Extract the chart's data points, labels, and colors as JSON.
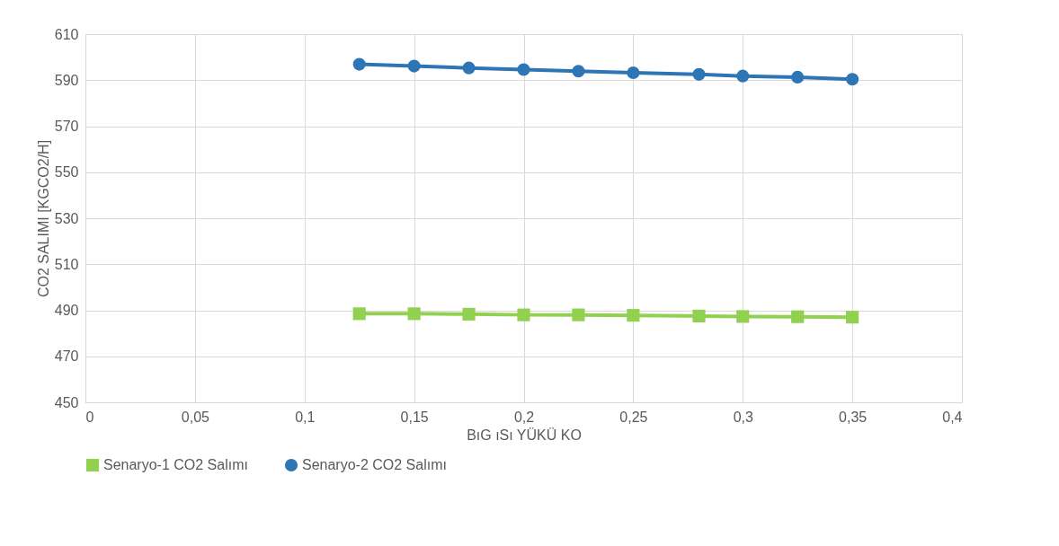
{
  "chart_data": {
    "type": "line",
    "xlabel": "BıG ıSı YÜKÜ KO",
    "ylabel": "CO2 SALIMI [KGCO2/H]",
    "x": [
      0.125,
      0.15,
      0.175,
      0.2,
      0.225,
      0.25,
      0.28,
      0.3,
      0.325,
      0.35
    ],
    "series": [
      {
        "name": "Senaryo-1 CO2 Salımı",
        "color": "#92d050",
        "marker": "square",
        "values": [
          488.5,
          488.5,
          488.3,
          488.0,
          488.0,
          487.8,
          487.5,
          487.3,
          487.2,
          487.0
        ]
      },
      {
        "name": "Senaryo-2 CO2 Salımı",
        "color": "#2e75b6",
        "marker": "circle",
        "values": [
          596.9,
          596.1,
          595.3,
          594.6,
          593.9,
          593.2,
          592.5,
          591.8,
          591.3,
          590.4
        ]
      }
    ],
    "xlim": [
      0,
      0.4
    ],
    "xticks": [
      0,
      {
        "value": 0.05,
        "label": "0,05"
      },
      {
        "value": 0.1,
        "label": "0,1"
      },
      {
        "value": 0.15,
        "label": "0,15"
      },
      {
        "value": 0.2,
        "label": "0,2"
      },
      {
        "value": 0.25,
        "label": "0,25"
      },
      {
        "value": 0.3,
        "label": "0,3"
      },
      {
        "value": 0.35,
        "label": "0,35"
      },
      {
        "value": 0.4,
        "label": "0,4"
      }
    ],
    "ylim": [
      450,
      610
    ],
    "yticks": [
      450,
      470,
      490,
      510,
      530,
      550,
      570,
      590,
      610
    ],
    "grid": true,
    "legend": "bottom",
    "line_style": "solid"
  }
}
